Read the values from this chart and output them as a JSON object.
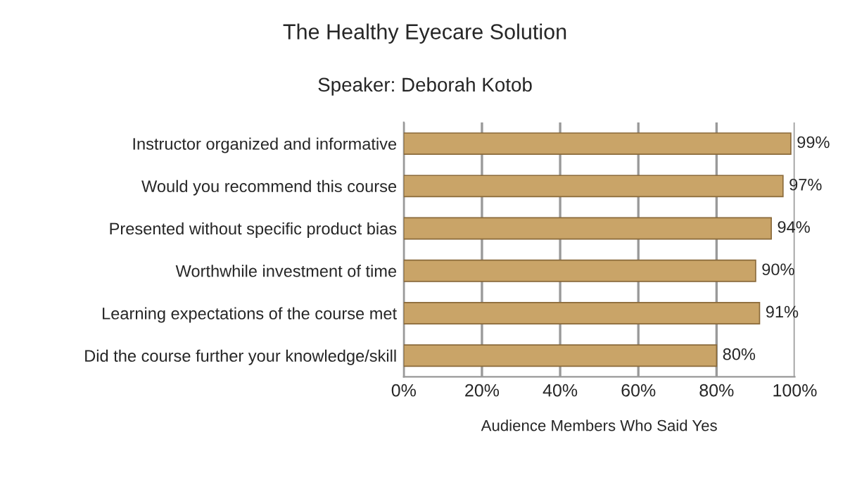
{
  "chart_data": {
    "type": "bar",
    "orientation": "horizontal",
    "title": "The Healthy Eyecare Solution",
    "subtitle": "Speaker: Deborah Kotob",
    "xlabel": "Audience Members Who Said Yes",
    "categories": [
      "Instructor organized and informative",
      "Would you recommend this course",
      "Presented without specific product bias",
      "Worthwhile investment of time",
      "Learning expectations of the course met",
      "Did the course further your knowledge/skill"
    ],
    "values": [
      99,
      97,
      94,
      90,
      91,
      80
    ],
    "value_labels": [
      "99%",
      "97%",
      "94%",
      "90%",
      "91%",
      "80%"
    ],
    "color": "#c9a468",
    "xlim": [
      0,
      100
    ],
    "xticks": [
      {
        "value": 0,
        "label": "0%"
      },
      {
        "value": 20,
        "label": "20%"
      },
      {
        "value": 40,
        "label": "40%"
      },
      {
        "value": 60,
        "label": "60%"
      },
      {
        "value": 80,
        "label": "80%"
      },
      {
        "value": 100,
        "label": "100%"
      }
    ],
    "grid": "x"
  }
}
